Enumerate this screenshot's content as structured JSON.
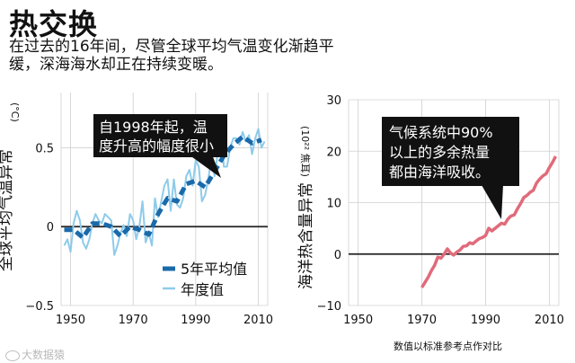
{
  "title": "热交换",
  "subtitle": "在过去的16年间，尽管全球平均气温变化渐趋平缓，深海海水却正在持续变暖。",
  "colors": {
    "avg_line": "#1a6aaa",
    "annual_line": "#8ecbea",
    "heat_line": "#e06b7a",
    "callout_bg": "#111111"
  },
  "watermark": "大数据猿",
  "chart_data": [
    {
      "type": "line",
      "ylabel": "全球平均气温异常",
      "yunit": "(°C)",
      "xlim": [
        1947,
        2013
      ],
      "ylim": [
        -0.5,
        0.85
      ],
      "xticks": [
        "1950",
        "1970",
        "1990",
        "2010"
      ],
      "yticks": [
        "0.5",
        "0",
        "−0.5"
      ],
      "callout": "自1998年起，温度升高的幅度很小",
      "legend": {
        "position": "bottom-right",
        "entries": [
          "5年平均值",
          "年度值"
        ]
      },
      "series": [
        {
          "name": "5年平均值",
          "x": [
            1948,
            1951,
            1954,
            1957,
            1960,
            1963,
            1966,
            1969,
            1972,
            1975,
            1978,
            1981,
            1984,
            1987,
            1990,
            1993,
            1996,
            1999,
            2002,
            2005,
            2008,
            2011
          ],
          "values": [
            -0.02,
            -0.02,
            -0.07,
            0.02,
            0.02,
            0.0,
            -0.06,
            0.0,
            -0.02,
            -0.05,
            0.08,
            0.18,
            0.16,
            0.27,
            0.29,
            0.25,
            0.35,
            0.45,
            0.52,
            0.57,
            0.53,
            0.55
          ]
        },
        {
          "name": "年度值",
          "x": [
            1948,
            1949,
            1950,
            1951,
            1952,
            1953,
            1954,
            1955,
            1956,
            1957,
            1958,
            1959,
            1960,
            1961,
            1962,
            1963,
            1964,
            1965,
            1966,
            1967,
            1968,
            1969,
            1970,
            1971,
            1972,
            1973,
            1974,
            1975,
            1976,
            1977,
            1978,
            1979,
            1980,
            1981,
            1982,
            1983,
            1984,
            1985,
            1986,
            1987,
            1988,
            1989,
            1990,
            1991,
            1992,
            1993,
            1994,
            1995,
            1996,
            1997,
            1998,
            1999,
            2000,
            2001,
            2002,
            2003,
            2004,
            2005,
            2006,
            2007,
            2008,
            2009,
            2010,
            2011,
            2012
          ],
          "values": [
            -0.12,
            -0.08,
            -0.16,
            0.02,
            0.1,
            0.04,
            -0.1,
            -0.14,
            -0.08,
            0.02,
            0.08,
            0.04,
            0.02,
            0.08,
            0.06,
            0.04,
            -0.18,
            -0.12,
            -0.04,
            0.01,
            -0.06,
            0.08,
            0.04,
            -0.08,
            0.0,
            0.16,
            -0.1,
            -0.04,
            -0.12,
            0.18,
            0.06,
            0.16,
            0.26,
            0.3,
            0.1,
            0.3,
            0.14,
            0.12,
            0.18,
            0.32,
            0.36,
            0.26,
            0.42,
            0.38,
            0.16,
            0.2,
            0.3,
            0.44,
            0.32,
            0.46,
            0.62,
            0.38,
            0.38,
            0.5,
            0.56,
            0.56,
            0.52,
            0.6,
            0.54,
            0.58,
            0.46,
            0.56,
            0.62,
            0.5,
            0.54
          ]
        }
      ]
    },
    {
      "type": "line",
      "ylabel": "海洋热含量异常",
      "yunit": "(10²² 焦耳)",
      "xlim": [
        1947,
        2013
      ],
      "ylim": [
        -10,
        30
      ],
      "xticks": [
        "1950",
        "1970",
        "1990",
        "2010"
      ],
      "yticks": [
        "30",
        "20",
        "10",
        "0",
        "−10"
      ],
      "callout": "气候系统中90%以上的多余热量都由海洋吸收。",
      "footnote": "数值以标准参考点作对比",
      "series": [
        {
          "x": [
            1970,
            1971,
            1972,
            1973,
            1974,
            1975,
            1976,
            1977,
            1978,
            1979,
            1980,
            1981,
            1982,
            1983,
            1984,
            1985,
            1986,
            1987,
            1988,
            1989,
            1990,
            1991,
            1992,
            1993,
            1994,
            1995,
            1996,
            1997,
            1998,
            1999,
            2000,
            2001,
            2002,
            2003,
            2004,
            2005,
            2006,
            2007,
            2008,
            2009,
            2010,
            2011,
            2012
          ],
          "values": [
            -6.5,
            -5.5,
            -4.5,
            -3.2,
            -2.2,
            -0.6,
            -0.8,
            0.0,
            1.0,
            0.2,
            -0.2,
            0.4,
            0.8,
            1.5,
            1.6,
            2.2,
            2.0,
            2.5,
            3.0,
            3.2,
            3.6,
            5.0,
            4.5,
            5.0,
            5.5,
            6.0,
            5.8,
            6.8,
            7.4,
            7.6,
            8.8,
            9.8,
            11.0,
            11.4,
            12.0,
            12.4,
            13.8,
            14.6,
            15.2,
            15.6,
            16.8,
            17.8,
            19.0
          ]
        }
      ]
    }
  ]
}
